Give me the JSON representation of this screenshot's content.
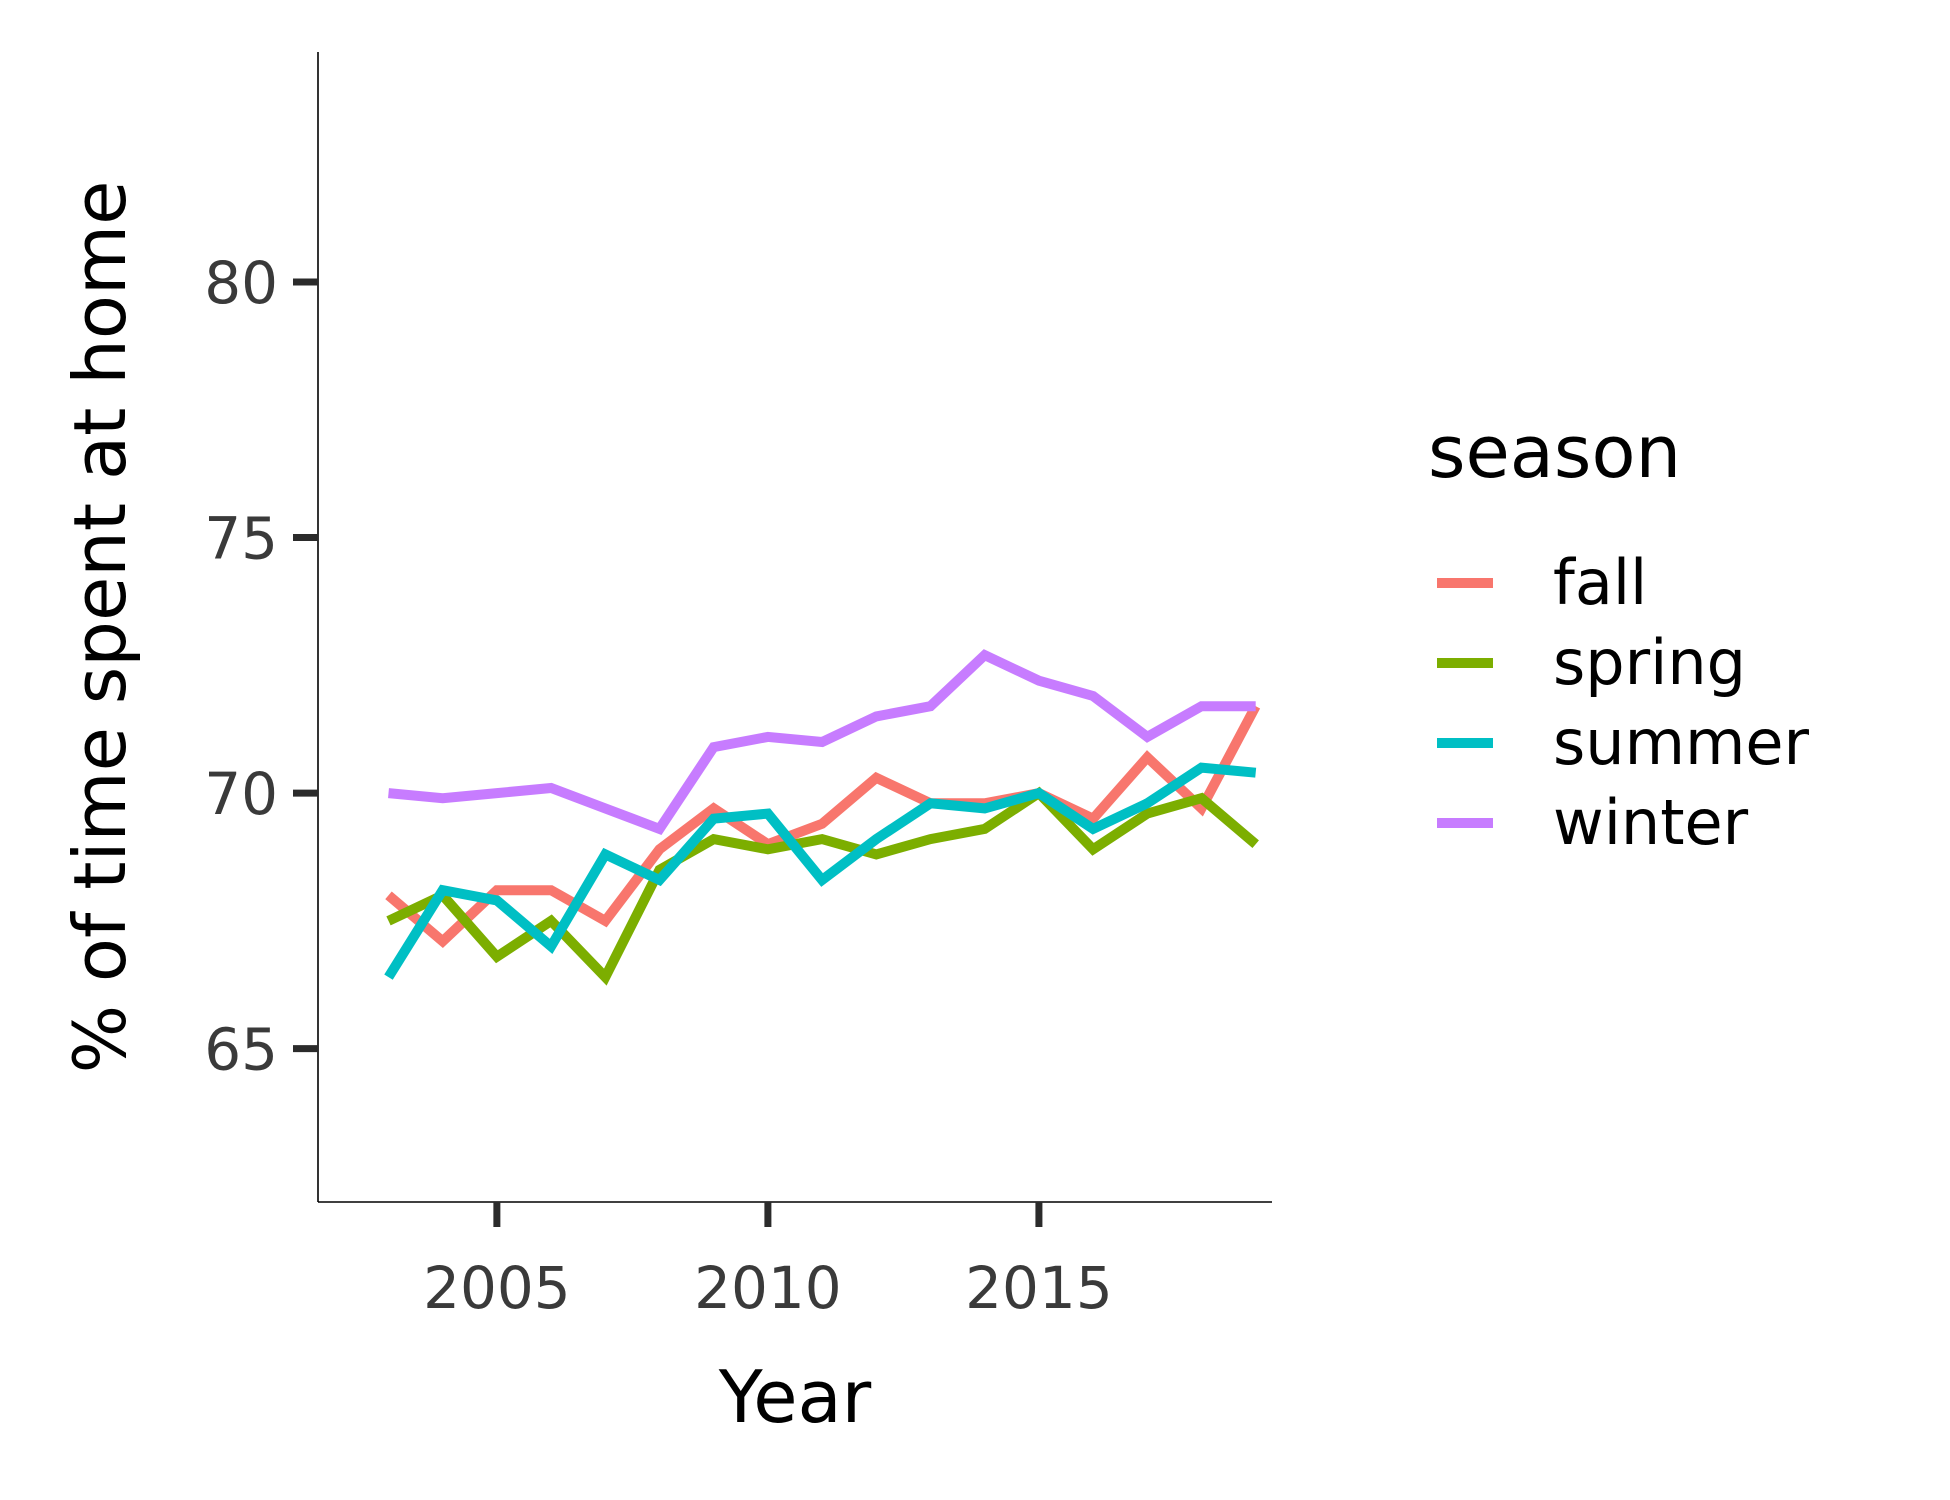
{
  "chart_data": {
    "type": "line",
    "xlabel": "Year",
    "ylabel": "% of time spent at home",
    "xlim": [
      2001.7,
      2019.3
    ],
    "ylim": [
      62.0,
      84.5
    ],
    "x_ticks": [
      2005,
      2010,
      2015
    ],
    "y_ticks": [
      65,
      70,
      75,
      80
    ],
    "grid": false,
    "legend": {
      "title": "season",
      "position": "right"
    },
    "x": [
      2003,
      2004,
      2005,
      2006,
      2007,
      2008,
      2009,
      2010,
      2011,
      2012,
      2013,
      2014,
      2015,
      2016,
      2017,
      2018,
      2019
    ],
    "series": [
      {
        "name": "fall",
        "color": "#F8766D",
        "values": [
          68.0,
          67.1,
          68.1,
          68.1,
          67.5,
          68.9,
          69.7,
          69.0,
          69.4,
          70.3,
          69.8,
          69.8,
          70.0,
          69.5,
          70.7,
          69.7,
          71.7
        ]
      },
      {
        "name": "spring",
        "color": "#7CAE00",
        "values": [
          67.5,
          68.0,
          66.8,
          67.5,
          66.4,
          68.5,
          69.1,
          68.9,
          69.1,
          68.8,
          69.1,
          69.3,
          70.0,
          68.9,
          69.6,
          69.9,
          69.0
        ]
      },
      {
        "name": "summer",
        "color": "#00BFC4",
        "values": [
          66.4,
          68.1,
          67.9,
          67.0,
          68.8,
          68.3,
          69.5,
          69.6,
          68.3,
          69.1,
          69.8,
          69.7,
          70.0,
          69.3,
          69.8,
          70.5,
          70.4
        ]
      },
      {
        "name": "winter",
        "color": "#C77CFF",
        "values": [
          70.0,
          69.9,
          70.0,
          70.1,
          69.7,
          69.3,
          70.9,
          71.1,
          71.0,
          71.5,
          71.7,
          72.7,
          72.2,
          71.9,
          71.1,
          71.7,
          71.7
        ]
      }
    ]
  }
}
